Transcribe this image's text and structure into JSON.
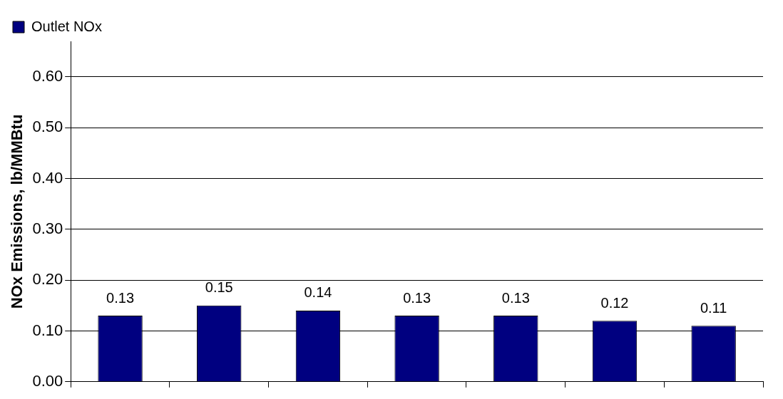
{
  "chart_data": {
    "type": "bar",
    "ylabel": "NOx Emissions, lb/MMBtu",
    "categories": [
      null,
      null,
      null,
      null,
      null,
      null,
      null
    ],
    "series": [
      {
        "name": "Outlet NOx",
        "color": "#000080",
        "values": [
          0.13,
          0.15,
          0.14,
          0.13,
          0.13,
          0.12,
          0.11
        ]
      }
    ],
    "ylim": [
      0,
      0.67
    ],
    "yticks": [
      {
        "value": 0,
        "label": "0.00"
      },
      {
        "value": 0.1,
        "label": "0.10"
      },
      {
        "value": 0.2,
        "label": "0.20"
      },
      {
        "value": 0.3,
        "label": "0.30"
      },
      {
        "value": 0.4,
        "label": "0.40"
      },
      {
        "value": 0.5,
        "label": "0.50"
      },
      {
        "value": 0.6,
        "label": "0.60"
      }
    ],
    "grid": "y",
    "legend": "top left",
    "data_labels": true,
    "tick_labels": "y"
  }
}
